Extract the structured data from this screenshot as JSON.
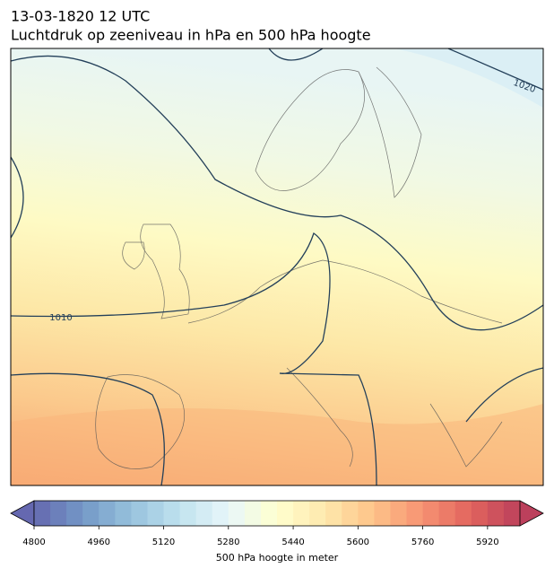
{
  "header": {
    "time": "13-03-1820 12 UTC",
    "title": "Luchtdruk op zeeniveau in hPa en 500 hPa hoogte"
  },
  "map": {
    "contour_labels": [
      "1010",
      "1020"
    ]
  },
  "colorbar": {
    "label": "500 hPa hoogte in meter",
    "range": [
      4800,
      6000
    ],
    "step": 40,
    "ticks": [
      4800,
      4960,
      5120,
      5280,
      5440,
      5600,
      5760,
      5920
    ]
  }
}
